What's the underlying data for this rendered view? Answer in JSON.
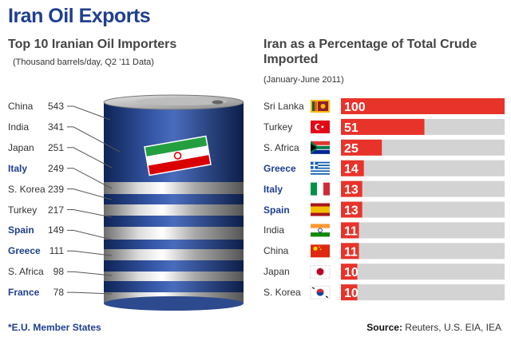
{
  "title": "Iran Oil Exports",
  "left": {
    "title": "Top 10 Iranian Oil Importers",
    "note": "(Thousand barrels/day, Q2 ’11 Data)"
  },
  "right": {
    "title": "Iran as a Percentage of Total Crude Imported",
    "note": "(January-June 2011)"
  },
  "footer": {
    "eu_note": "*E.U. Member States",
    "source_label": "Source:",
    "source_text": " Reuters, U.S. EIA, IEA"
  },
  "colors": {
    "accent": "#1f3f8f",
    "bar": "#e8332a",
    "bar_track": "#d3d3d3",
    "barrel_blue": "#1f3f8f"
  },
  "chart_data": [
    {
      "type": "table",
      "title": "Top 10 Iranian Oil Importers",
      "subtitle": "(Thousand barrels/day, Q2 ’11 Data)",
      "rows": [
        {
          "country": "China",
          "value": 543,
          "eu": false
        },
        {
          "country": "India",
          "value": 341,
          "eu": false
        },
        {
          "country": "Japan",
          "value": 251,
          "eu": false
        },
        {
          "country": "Italy",
          "value": 249,
          "eu": true
        },
        {
          "country": "S. Korea",
          "value": 239,
          "eu": false
        },
        {
          "country": "Turkey",
          "value": 217,
          "eu": false
        },
        {
          "country": "Spain",
          "value": 149,
          "eu": true
        },
        {
          "country": "Greece",
          "value": 111,
          "eu": true
        },
        {
          "country": "S. Africa",
          "value": 98,
          "eu": false
        },
        {
          "country": "France",
          "value": 78,
          "eu": true
        }
      ]
    },
    {
      "type": "bar",
      "title": "Iran as a Percentage of Total Crude Imported",
      "subtitle": "(January-June 2011)",
      "categories": [
        "Sri Lanka",
        "Turkey",
        "S. Africa",
        "Greece",
        "Italy",
        "Spain",
        "India",
        "China",
        "Japan",
        "S. Korea"
      ],
      "values": [
        100,
        51,
        25,
        14,
        13,
        13,
        11,
        11,
        10,
        10
      ],
      "eu": [
        false,
        false,
        false,
        true,
        true,
        true,
        false,
        false,
        false,
        false
      ],
      "flags": [
        "sri-lanka-flag",
        "turkey-flag",
        "south-africa-flag",
        "greece-flag",
        "italy-flag",
        "spain-flag",
        "india-flag",
        "china-flag",
        "japan-flag",
        "south-korea-flag"
      ],
      "xlim": [
        0,
        100
      ],
      "orientation": "horizontal"
    }
  ]
}
